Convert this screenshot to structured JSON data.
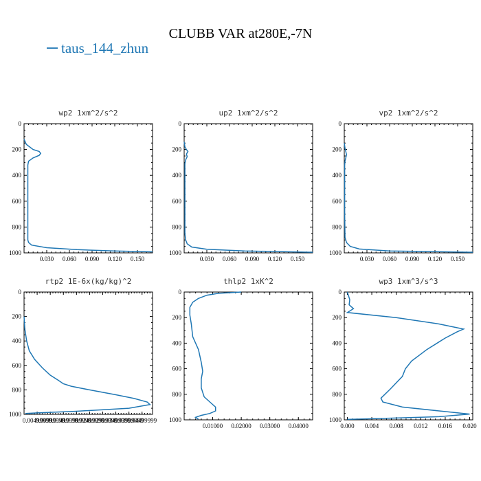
{
  "figure": {
    "title": "CLUBB VAR at280E,-7N",
    "legend": [
      {
        "label": "taus_144_zhun",
        "color": "#1f77b4"
      }
    ]
  },
  "chart_data": [
    {
      "type": "line",
      "title": "wp2  1xm^2/s^2",
      "xlim": [
        0,
        0.17
      ],
      "ylim": [
        1000,
        0
      ],
      "xticks": [
        0.03,
        0.06,
        0.09,
        0.12,
        0.15
      ],
      "xticklabels": [
        "0.030",
        "0.060",
        "0.090",
        "0.120",
        "0.150"
      ],
      "yticks": [
        0,
        200,
        400,
        600,
        800,
        1000
      ],
      "series": [
        {
          "color": "#1f77b4",
          "x": [
            0.0,
            0.003,
            0.012,
            0.02,
            0.022,
            0.02,
            0.012,
            0.006,
            0.005,
            0.005,
            0.005,
            0.005,
            0.006,
            0.01,
            0.03,
            0.07,
            0.12,
            0.17
          ],
          "y": [
            120,
            160,
            200,
            215,
            230,
            245,
            265,
            290,
            320,
            500,
            800,
            900,
            920,
            940,
            960,
            975,
            985,
            992
          ]
        }
      ]
    },
    {
      "type": "line",
      "title": "up2  1xm^2/s^2",
      "xlim": [
        0,
        0.17
      ],
      "ylim": [
        1000,
        0
      ],
      "xticks": [
        0.03,
        0.06,
        0.09,
        0.12,
        0.15
      ],
      "xticklabels": [
        "0.030",
        "0.060",
        "0.090",
        "0.120",
        "0.150"
      ],
      "yticks": [
        0,
        200,
        400,
        600,
        800,
        1000
      ],
      "series": [
        {
          "color": "#1f77b4",
          "x": [
            0.0,
            0.001,
            0.003,
            0.005,
            0.003,
            0.004,
            0.002,
            0.001,
            0.001,
            0.001,
            0.002,
            0.004,
            0.01,
            0.03,
            0.08,
            0.17
          ],
          "y": [
            140,
            180,
            200,
            215,
            235,
            255,
            280,
            310,
            500,
            850,
            900,
            930,
            955,
            972,
            985,
            995
          ]
        }
      ]
    },
    {
      "type": "line",
      "title": "vp2  1xm^2/s^2",
      "xlim": [
        0,
        0.17
      ],
      "ylim": [
        1000,
        0
      ],
      "xticks": [
        0.03,
        0.06,
        0.09,
        0.12,
        0.15
      ],
      "xticklabels": [
        "0.030",
        "0.060",
        "0.090",
        "0.120",
        "0.150"
      ],
      "yticks": [
        0,
        200,
        400,
        600,
        800,
        1000
      ],
      "series": [
        {
          "color": "#1f77b4",
          "x": [
            0.0,
            0.001,
            0.002,
            0.003,
            0.002,
            0.001,
            0.0005,
            0.0005,
            0.001,
            0.003,
            0.008,
            0.02,
            0.06,
            0.17
          ],
          "y": [
            150,
            190,
            215,
            240,
            265,
            290,
            320,
            700,
            880,
            920,
            950,
            970,
            985,
            995
          ]
        }
      ]
    },
    {
      "type": "line",
      "title": "rtp2  1E-6x(kg/kg)^2",
      "xlim": [
        0,
        0.049
      ],
      "ylim": [
        1000,
        0
      ],
      "xticks": [
        0.005,
        0.01,
        0.015,
        0.02,
        0.025,
        0.03,
        0.035,
        0.04,
        0.045
      ],
      "xticklabels": [
        "0.00499999",
        "0.00999999",
        "0.01499999",
        "0.01999999",
        "0.02499999",
        "0.02999999",
        "0.03499999",
        "0.03999999",
        "0.04499999"
      ],
      "yticks": [
        0,
        200,
        400,
        600,
        800,
        1000
      ],
      "series": [
        {
          "color": "#1f77b4",
          "x": [
            0.0,
            0.0003,
            0.001,
            0.002,
            0.004,
            0.007,
            0.01,
            0.013,
            0.015,
            0.018,
            0.025,
            0.035,
            0.042,
            0.047,
            0.048,
            0.04,
            0.02,
            0.005,
            0.0005
          ],
          "y": [
            200,
            300,
            400,
            480,
            550,
            620,
            680,
            720,
            750,
            770,
            800,
            840,
            870,
            900,
            920,
            950,
            975,
            988,
            993
          ]
        }
      ]
    },
    {
      "type": "line",
      "title": "thlp2  1xK^2",
      "xlim": [
        0,
        0.045
      ],
      "ylim": [
        1000,
        0
      ],
      "xticks": [
        0.01,
        0.02,
        0.03,
        0.04
      ],
      "xticklabels": [
        "0.01000",
        "0.02000",
        "0.03000",
        "0.04000"
      ],
      "yticks": [
        0,
        200,
        400,
        600,
        800,
        1000
      ],
      "series": [
        {
          "color": "#1f77b4",
          "x": [
            0.02,
            0.012,
            0.008,
            0.005,
            0.003,
            0.002,
            0.002,
            0.0025,
            0.003,
            0.005,
            0.006,
            0.0065,
            0.006,
            0.006,
            0.007,
            0.009,
            0.011,
            0.011,
            0.009,
            0.006,
            0.004,
            0.005
          ],
          "y": [
            0,
            10,
            25,
            50,
            80,
            120,
            180,
            250,
            350,
            450,
            550,
            620,
            680,
            750,
            820,
            860,
            900,
            930,
            950,
            965,
            980,
            995
          ]
        }
      ]
    },
    {
      "type": "line",
      "title": "wp3  1xm^3/s^3",
      "xlim": [
        -0.0005,
        0.0205
      ],
      "ylim": [
        1000,
        0
      ],
      "xticks": [
        0.0,
        0.004,
        0.008,
        0.012,
        0.016,
        0.02
      ],
      "xticklabels": [
        "0.000",
        "0.004",
        "0.008",
        "0.012",
        "0.016",
        "0.020"
      ],
      "yticks": [
        0,
        200,
        400,
        600,
        800,
        1000
      ],
      "series": [
        {
          "color": "#1f77b4",
          "x": [
            0.0,
            0.0004,
            0.0003,
            0.001,
            0.0,
            0.008,
            0.015,
            0.019,
            0.018,
            0.016,
            0.013,
            0.0105,
            0.0095,
            0.009,
            0.007,
            0.0055,
            0.0058,
            0.009,
            0.015,
            0.02,
            0.015,
            0.005,
            0.0
          ],
          "y": [
            0,
            60,
            100,
            130,
            160,
            200,
            250,
            290,
            310,
            360,
            450,
            540,
            600,
            660,
            760,
            830,
            860,
            900,
            930,
            955,
            975,
            990,
            996
          ]
        }
      ]
    }
  ]
}
